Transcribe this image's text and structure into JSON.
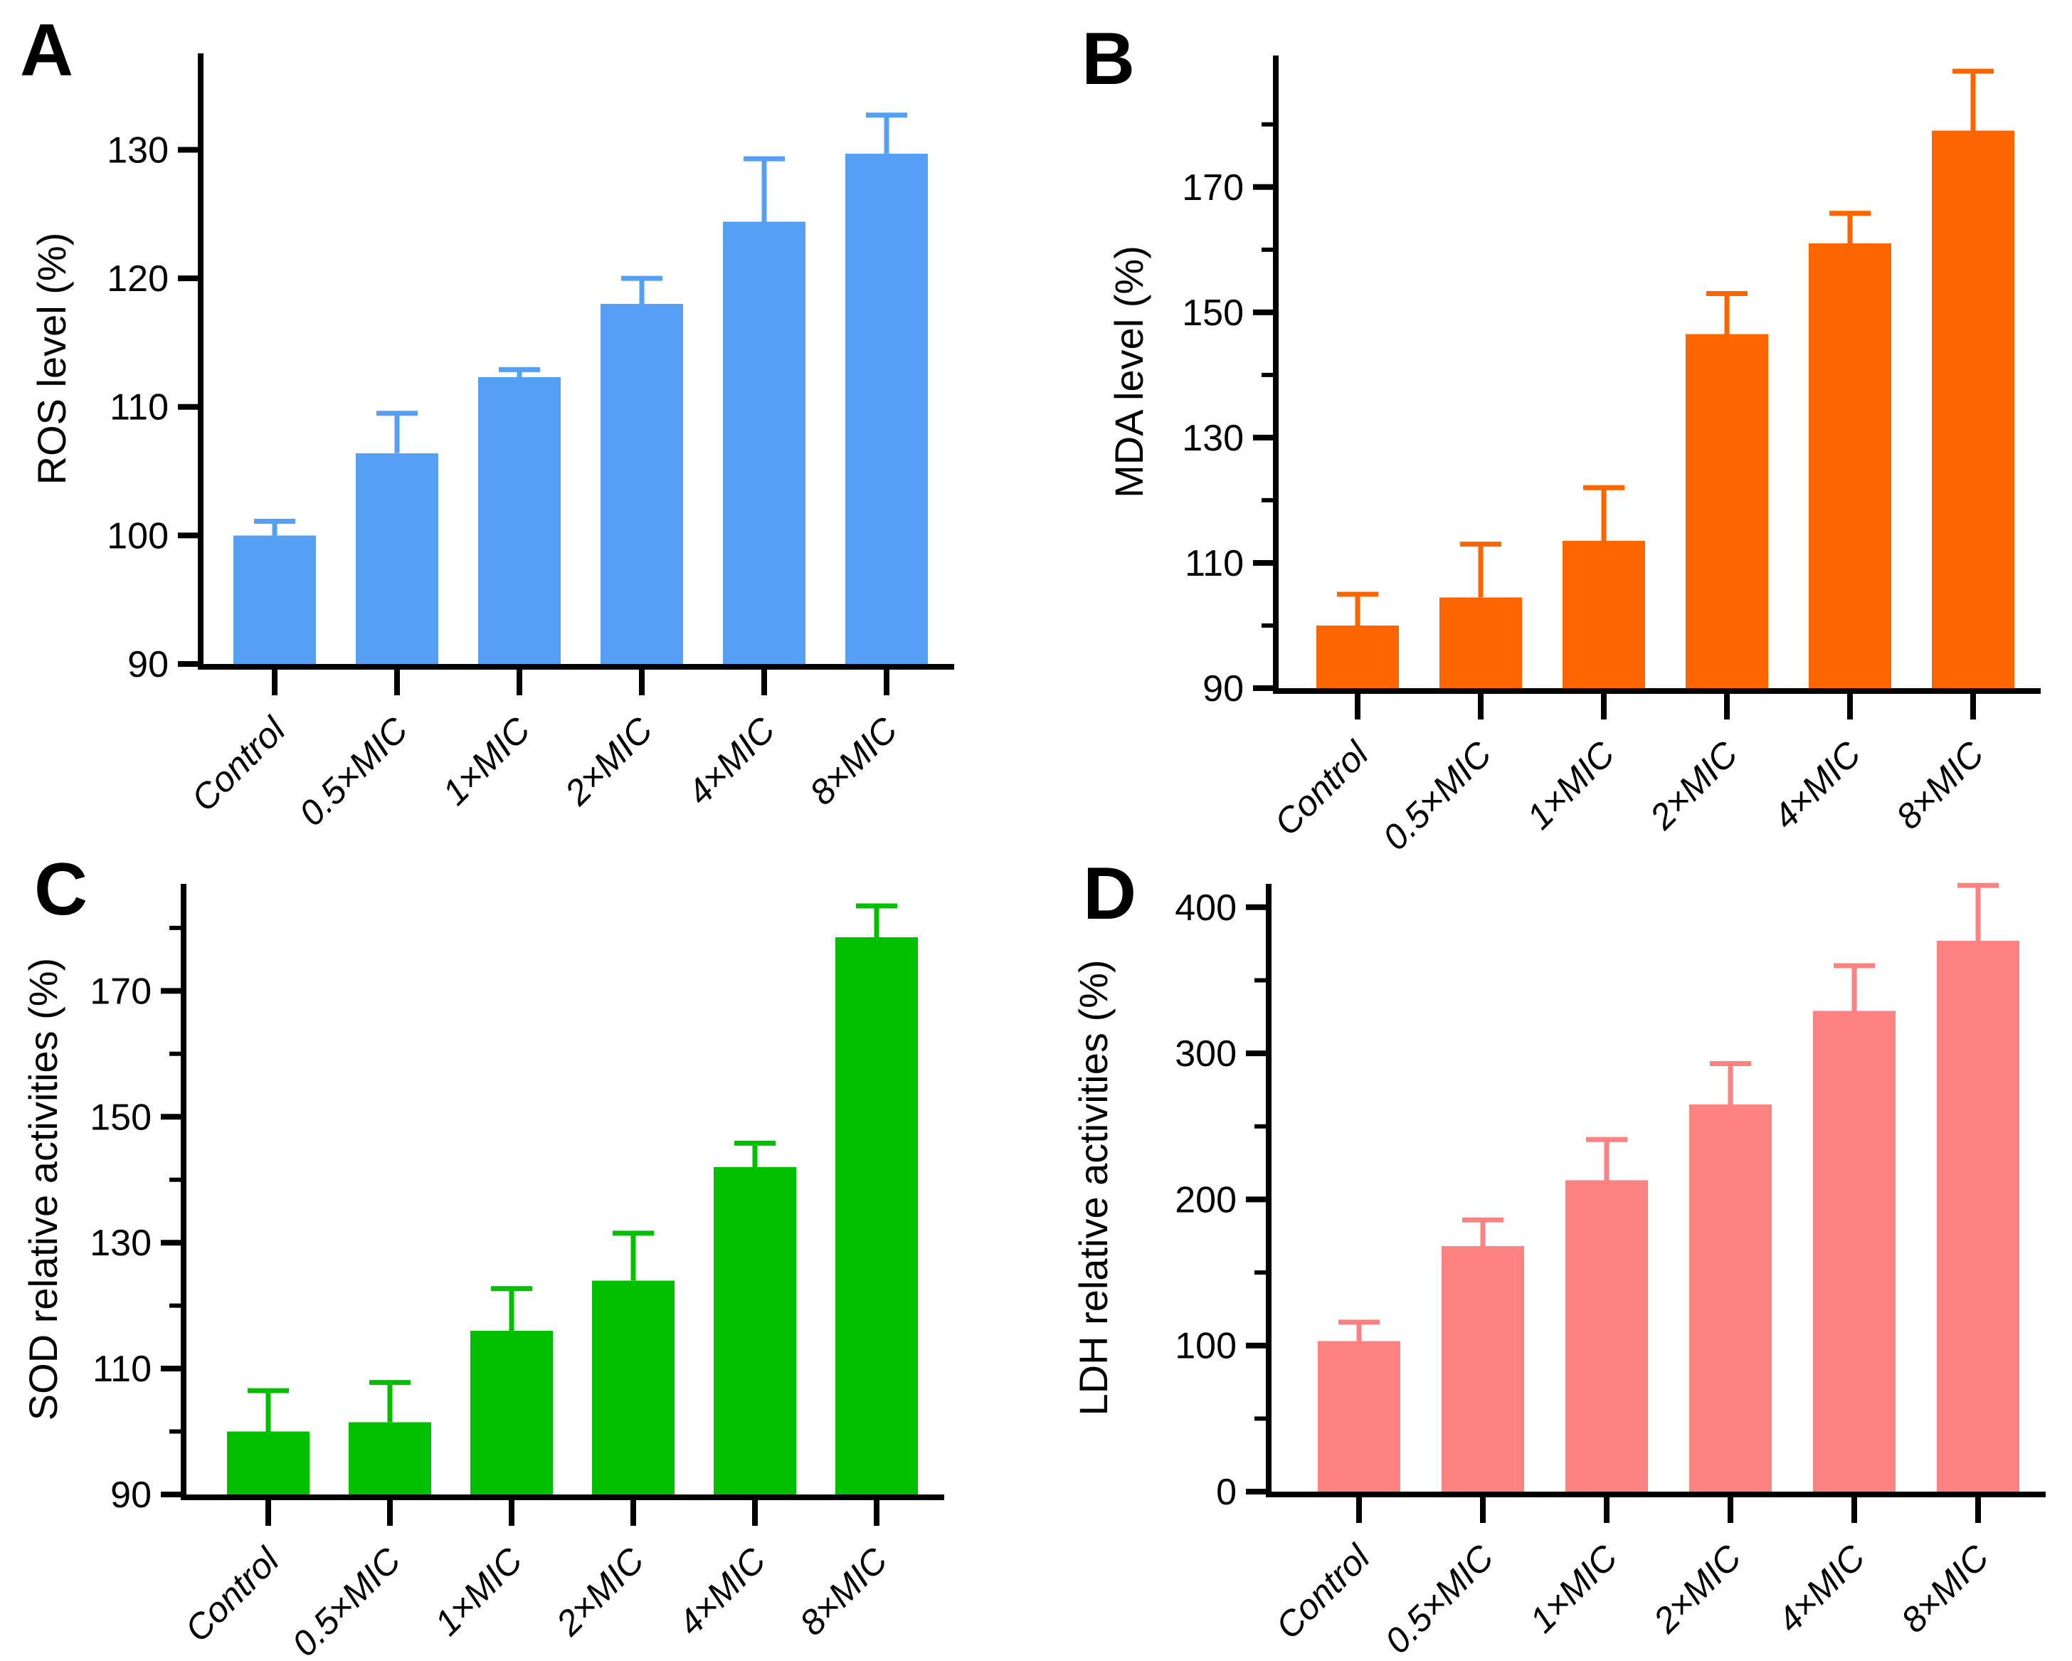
{
  "figure": {
    "background": "#ffffff",
    "axis_color": "#000000",
    "text_color": "#000000"
  },
  "chart_data": [
    {
      "type": "bar",
      "panel_label": "A",
      "title": "",
      "xlabel": "",
      "ylabel": "ROS level (%)",
      "categories": [
        "Control",
        "0.5×MIC",
        "1×MIC",
        "2×MIC",
        "4×MIC",
        "8×MIC"
      ],
      "values": [
        100,
        106.4,
        112.3,
        118,
        124.4,
        129.7
      ],
      "errors": [
        1.1,
        3.1,
        0.6,
        2,
        4.9,
        3
      ],
      "bar_color": "#55A0F5",
      "ylim": [
        90,
        137.5
      ],
      "yticks_major": [
        90,
        100,
        110,
        120,
        130
      ],
      "yticks_minor": [],
      "grid": "off",
      "legend": "none",
      "layout": {
        "axis_left": 282,
        "base_y": 933,
        "top_y": 75,
        "first_center": 386,
        "pitch": 172,
        "title_x": 92,
        "letter_x": 28,
        "letter_y": 106
      }
    },
    {
      "type": "bar",
      "panel_label": "B",
      "title": "",
      "xlabel": "",
      "ylabel": "MDA level (%)",
      "categories": [
        "Control",
        "0.5×MIC",
        "1×MIC",
        "2×MIC",
        "4×MIC",
        "8×MIC"
      ],
      "values": [
        100,
        104.5,
        113.5,
        146.5,
        161,
        179
      ],
      "errors": [
        5,
        8.5,
        8.5,
        6.5,
        4.8,
        9.5
      ],
      "bar_color": "#FD6500",
      "ylim": [
        90,
        191
      ],
      "yticks_major": [
        90,
        110,
        130,
        150,
        170
      ],
      "yticks_minor": [
        100,
        120,
        140,
        160,
        180
      ],
      "grid": "off",
      "legend": "none",
      "layout": {
        "axis_left": 337,
        "base_y": 967,
        "top_y": 78,
        "first_center": 452,
        "pitch": 173,
        "title_x": 150,
        "letter_x": 64,
        "letter_y": 118
      }
    },
    {
      "type": "bar",
      "panel_label": "C",
      "title": "",
      "xlabel": "",
      "ylabel": "SOD relative activities (%)",
      "categories": [
        "Control",
        "0.5×MIC",
        "1×MIC",
        "2×MIC",
        "4×MIC",
        "8×MIC"
      ],
      "values": [
        100,
        101.5,
        116,
        124,
        142,
        178.5
      ],
      "errors": [
        6.5,
        6.3,
        6.7,
        7.5,
        3.8,
        5
      ],
      "bar_color": "#00C000",
      "ylim": [
        90,
        187
      ],
      "yticks_major": [
        90,
        110,
        130,
        150,
        170
      ],
      "yticks_minor": [
        100,
        120,
        140,
        160,
        180
      ],
      "grid": "off",
      "legend": "none",
      "layout": {
        "axis_left": 258,
        "base_y": 933,
        "top_y": 75,
        "first_center": 377,
        "pitch": 171,
        "title_x": 80,
        "letter_x": 48,
        "letter_y": 118
      }
    },
    {
      "type": "bar",
      "panel_label": "D",
      "title": "",
      "xlabel": "",
      "ylabel": "LDH relative activities (%)",
      "categories": [
        "Control",
        "0.5×MIC",
        "1×MIC",
        "2×MIC",
        "4×MIC",
        "8×MIC"
      ],
      "values": [
        103,
        168,
        213,
        265,
        329,
        377
      ],
      "errors": [
        13,
        18,
        28,
        28,
        31,
        38
      ],
      "bar_color": "#FC8181",
      "ylim": [
        0,
        416
      ],
      "yticks_major": [
        0,
        100,
        200,
        300,
        400
      ],
      "yticks_minor": [
        50,
        150,
        250,
        350
      ],
      "grid": "off",
      "legend": "none",
      "layout": {
        "axis_left": 327,
        "base_y": 929,
        "top_y": 75,
        "first_center": 454,
        "pitch": 174,
        "title_x": 100,
        "letter_x": 66,
        "letter_y": 124
      }
    }
  ]
}
